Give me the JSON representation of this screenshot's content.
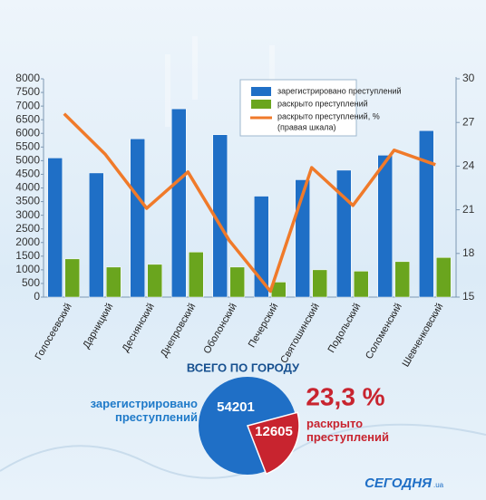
{
  "chart_data": [
    {
      "type": "bar-line",
      "categories": [
        "Голосеевский",
        "Дарницкий",
        "Деснянский",
        "Днепровский",
        "Оболонский",
        "Печерский",
        "Святошинский",
        "Подольский",
        "Соломенский",
        "Шевченковский"
      ],
      "series": [
        {
          "name": "зарегистрировано преступлений",
          "color": "#1f6fc6",
          "values": [
            5100,
            4550,
            5800,
            6900,
            5950,
            3700,
            4300,
            4650,
            5200,
            6100
          ]
        },
        {
          "name": "раскрыто преступлений",
          "color": "#6aa51e",
          "values": [
            1400,
            1100,
            1200,
            1650,
            1100,
            550,
            1000,
            950,
            1300,
            1450
          ]
        },
        {
          "name": "раскрыто преступлений, %",
          "color": "#f07a2a",
          "axis": "y2",
          "values": [
            27.6,
            24.8,
            21.1,
            23.6,
            18.9,
            15.4,
            23.9,
            21.3,
            25.1,
            24.1
          ]
        }
      ],
      "y2_note": "(правая шкала)",
      "ylim": [
        0,
        8000
      ],
      "yticks": [
        0,
        500,
        1000,
        1500,
        2000,
        2500,
        3000,
        3500,
        4000,
        4500,
        5000,
        5500,
        6000,
        6500,
        7000,
        7500,
        8000
      ],
      "y2lim": [
        15,
        30
      ],
      "y2ticks": [
        15,
        18,
        21,
        24,
        27,
        30
      ]
    },
    {
      "type": "pie",
      "title": "ВСЕГО ПО ГОРОДУ",
      "categories": [
        "зарегистрировано преступлений",
        "раскрыто преступлений"
      ],
      "values": [
        54201,
        12605
      ],
      "colors": [
        "#1f6fc6",
        "#c8242f"
      ],
      "share": {
        "value": 23.3,
        "label": "23,3 %"
      }
    }
  ],
  "logo": {
    "name": "СЕГОДНЯ",
    "suffix": ".ua"
  }
}
